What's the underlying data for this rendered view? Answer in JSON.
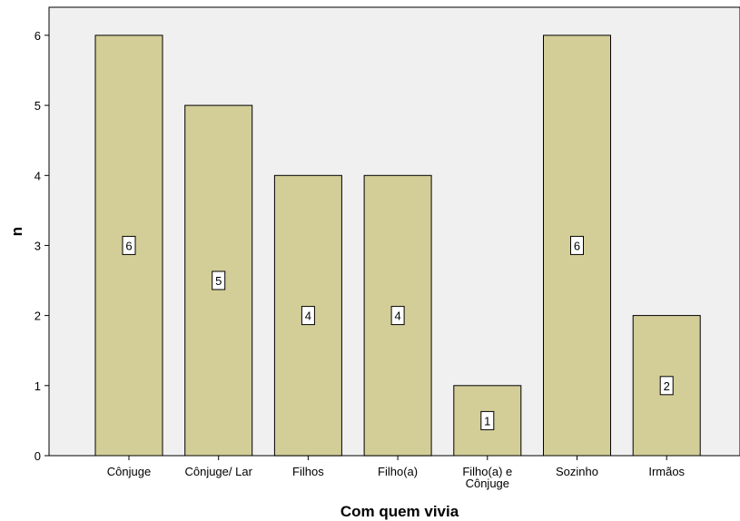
{
  "chart_data": {
    "type": "bar",
    "categories": [
      "Cônjuge",
      "Cônjuge/ Lar",
      "Filhos",
      "Filho(a)",
      "Filho(a) e Cônjuge",
      "Sozinho",
      "Irmãos"
    ],
    "category_lines": [
      [
        "Cônjuge"
      ],
      [
        "Cônjuge/ Lar"
      ],
      [
        "Filhos"
      ],
      [
        "Filho(a)"
      ],
      [
        "Filho(a) e",
        "Cônjuge"
      ],
      [
        "Sozinho"
      ],
      [
        "Irmãos"
      ]
    ],
    "values": [
      6,
      5,
      4,
      4,
      1,
      6,
      2
    ],
    "data_labels": [
      "6",
      "5",
      "4",
      "4",
      "1",
      "6",
      "2"
    ],
    "title": "",
    "xlabel": "Com quem vivia",
    "ylabel": "n",
    "ylim": [
      0,
      6.4
    ],
    "yticks": [
      "0",
      "1",
      "2",
      "3",
      "4",
      "5",
      "6"
    ],
    "grid": false,
    "legend": "none",
    "colors": {
      "bar_fill": "#d3ce98",
      "bar_stroke": "#000000",
      "plot_background": "#f0f0f0",
      "page_background": "#ffffff",
      "label_box_fill": "#ffffff"
    }
  }
}
